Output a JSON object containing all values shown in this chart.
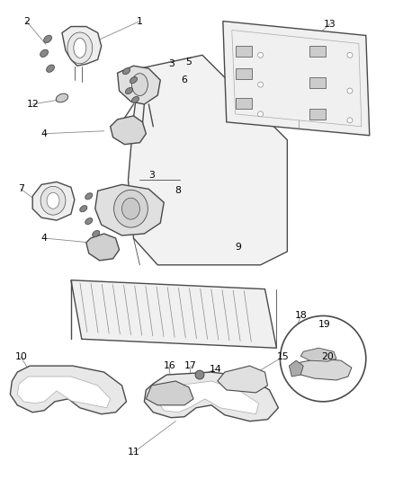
{
  "background_color": "#ffffff",
  "line_color": "#4a4a4a",
  "label_color": "#000000",
  "fig_width": 4.38,
  "fig_height": 5.33,
  "dpi": 100
}
